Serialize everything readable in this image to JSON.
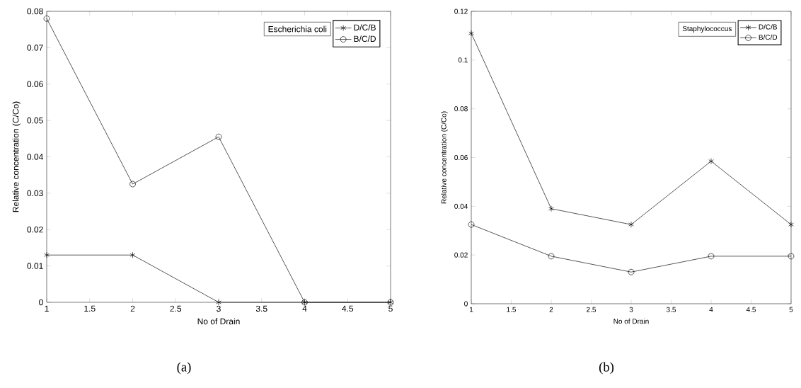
{
  "chart_data": [
    {
      "type": "line",
      "xlabel": "No of Drain",
      "ylabel": "Relative concentration (C/Co)",
      "x": [
        1,
        2,
        3,
        4,
        5
      ],
      "xlim": [
        1,
        5
      ],
      "ylim": [
        0,
        0.08
      ],
      "xticks": [
        1,
        1.5,
        2,
        2.5,
        3,
        3.5,
        4,
        4.5,
        5
      ],
      "yticks": [
        0,
        0.01,
        0.02,
        0.03,
        0.04,
        0.05,
        0.06,
        0.07,
        0.08
      ],
      "legend": "top right",
      "annotations": [
        "Escherichia coli",
        "(a)"
      ],
      "series": [
        {
          "name": "D/C/B",
          "color": "#000000",
          "marker": "cross",
          "values": [
            0.013,
            0.013,
            0,
            0,
            0
          ]
        },
        {
          "name": "B/C/D",
          "color": "#000000",
          "marker": "circle",
          "values": [
            0.078,
            0.0325,
            0.0455,
            0,
            0
          ]
        }
      ]
    },
    {
      "type": "line",
      "xlabel": "No of Drain",
      "ylabel": "Relative concentration (C/Co)",
      "x": [
        1,
        2,
        3,
        4,
        5
      ],
      "xlim": [
        1,
        5
      ],
      "ylim": [
        0,
        0.12
      ],
      "xticks": [
        1,
        1.5,
        2,
        2.5,
        3,
        3.5,
        4,
        4.5,
        5
      ],
      "yticks": [
        0,
        0.02,
        0.04,
        0.06,
        0.08,
        0.1,
        0.12
      ],
      "legend": "top right",
      "annotations": [
        "Staphylococcus",
        "(b)"
      ],
      "series": [
        {
          "name": "D/C/B",
          "color": "#000000",
          "marker": "cross",
          "values": [
            0.111,
            0.039,
            0.0325,
            0.0585,
            0.0325
          ]
        },
        {
          "name": "B/C/D",
          "color": "#000000",
          "marker": "circle",
          "values": [
            0.0325,
            0.0195,
            0.013,
            0.0195,
            0.0195
          ]
        }
      ]
    }
  ]
}
